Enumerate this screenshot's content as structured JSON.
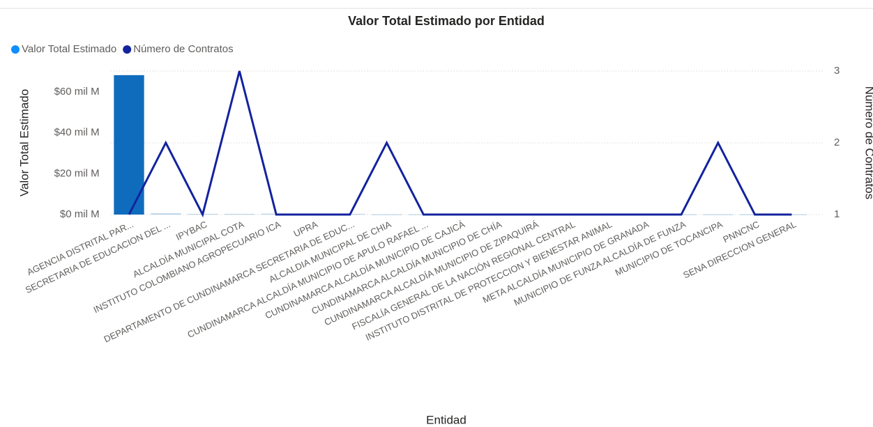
{
  "chart_data": {
    "type": "bar-line",
    "title": "Valor Total Estimado por Entidad",
    "x_label": "Entidad",
    "y_label": "Valor Total Estimado",
    "y2_label": "Número de Contratos",
    "categories": [
      "AGENCIA DISTRITAL PAR...",
      "SECRETARIA DE EDUCACION DEL ...",
      "IPYBAC",
      "ALCALDÍA MUNICIPAL COTA",
      "INSTITUTO COLOMBIANO AGROPECUARIO ICA",
      "UPRA",
      "DEPARTAMENTO DE CUNDINAMARCA SECRETARIA DE EDUC...",
      "ALCALDIA MUNICIPAL DE CHIA",
      "CUNDINAMARCA ALCALDÍA MUNICIPIO DE APULO RAFAEL ...",
      "CUNDINAMARCA ALCALDÍA MUNICIPIO DE CAJICÁ",
      "CUNDINAMARCA ALCALDÍA MUNICIPIO DE CHÍA",
      "CUNDINAMARCA ALCALDÍA MUNICIPIO DE ZIPAQUIRÁ",
      "FISCALÍA GENERAL DE LA NACIÓN REGIONAL CENTRAL",
      "INSTITUTO DISTRITAL DE PROTECCION Y BIENESTAR ANIMAL",
      "META ALCALDÍA MUNICIPIO DE GRANADA",
      "MUNICIPIO DE FUNZA ALCALDÍA DE FUNZA",
      "MUNICIPIO DE TOCANCIPA",
      "PNNCNC",
      "SENA DIRECCION GENERAL"
    ],
    "series": [
      {
        "name": "Valor Total Estimado",
        "color": "#118DFF",
        "bar_color": "#0F6CBD",
        "kind": "bar",
        "values": [
          68.2,
          0.6,
          0.3,
          0.3,
          0.4,
          0.2,
          0.3,
          0.1,
          0.1,
          0.1,
          0.1,
          0.1,
          0.1,
          0.1,
          0.1,
          0.1,
          0.1,
          0.1,
          0.1
        ]
      },
      {
        "name": "Número de Contratos",
        "color": "#12239E",
        "kind": "line",
        "axis": "y2",
        "values": [
          1,
          2,
          1,
          3,
          1,
          1,
          1,
          2,
          1,
          1,
          1,
          1,
          1,
          1,
          1,
          1,
          2,
          1,
          1
        ]
      }
    ],
    "ylim": [
      0,
      70.2
    ],
    "yticks": [
      {
        "value": 0,
        "label": "$0 mil M"
      },
      {
        "value": 20,
        "label": "$20 mil M"
      },
      {
        "value": 40,
        "label": "$40 mil M"
      },
      {
        "value": 60,
        "label": "$60 mil M"
      }
    ],
    "y2lim": [
      1,
      3
    ],
    "y2ticks": [
      1,
      2,
      3
    ],
    "grid": true
  }
}
